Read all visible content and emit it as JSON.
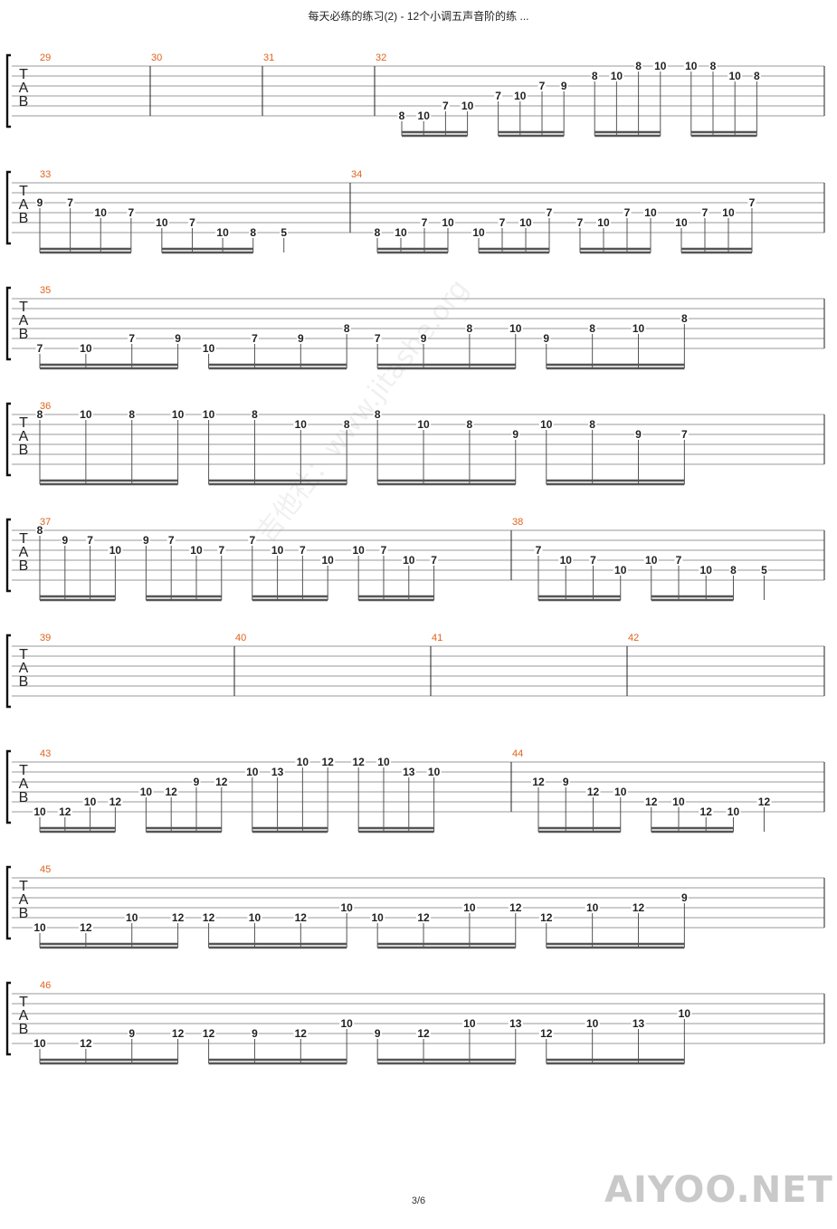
{
  "header": {
    "title": "每天必练的练习(2) - 12个小调五声音阶的练 ..."
  },
  "footer": {
    "page": "3/6",
    "logo": "AIYOO.NET"
  },
  "watermark": "吉他社：www.jitashe.org",
  "tab_label": [
    "T",
    "A",
    "B"
  ],
  "systems": [
    {
      "bars": [
        {
          "number": "29",
          "groups": []
        },
        {
          "number": "30",
          "groups": []
        },
        {
          "number": "31",
          "groups": []
        },
        {
          "number": "32",
          "groups": [
            [
              {
                "f": "8",
                "s": 6
              },
              {
                "f": "10",
                "s": 6
              },
              {
                "f": "7",
                "s": 5
              },
              {
                "f": "10",
                "s": 5
              }
            ],
            [
              {
                "f": "7",
                "s": 4
              },
              {
                "f": "10",
                "s": 4
              },
              {
                "f": "7",
                "s": 3
              },
              {
                "f": "9",
                "s": 3
              }
            ],
            [
              {
                "f": "8",
                "s": 2
              },
              {
                "f": "10",
                "s": 2
              },
              {
                "f": "8",
                "s": 1
              },
              {
                "f": "10",
                "s": 1
              }
            ],
            [
              {
                "f": "10",
                "s": 1
              },
              {
                "f": "8",
                "s": 1
              },
              {
                "f": "10",
                "s": 2
              },
              {
                "f": "8",
                "s": 2
              }
            ]
          ]
        }
      ]
    },
    {
      "bars": [
        {
          "number": "33",
          "groups": [
            [
              {
                "f": "9",
                "s": 3
              },
              {
                "f": "7",
                "s": 3
              },
              {
                "f": "10",
                "s": 4
              },
              {
                "f": "7",
                "s": 4
              }
            ],
            [
              {
                "f": "10",
                "s": 5
              },
              {
                "f": "7",
                "s": 5
              },
              {
                "f": "10",
                "s": 6
              },
              {
                "f": "8",
                "s": 6
              }
            ],
            [
              {
                "f": "5",
                "s": 6
              }
            ]
          ]
        },
        {
          "number": "34",
          "groups": [
            [
              {
                "f": "8",
                "s": 6
              },
              {
                "f": "10",
                "s": 6
              },
              {
                "f": "7",
                "s": 5
              },
              {
                "f": "10",
                "s": 5
              }
            ],
            [
              {
                "f": "10",
                "s": 6
              },
              {
                "f": "7",
                "s": 5
              },
              {
                "f": "10",
                "s": 5
              },
              {
                "f": "7",
                "s": 4
              }
            ],
            [
              {
                "f": "7",
                "s": 5
              },
              {
                "f": "10",
                "s": 5
              },
              {
                "f": "7",
                "s": 4
              },
              {
                "f": "10",
                "s": 4
              }
            ],
            [
              {
                "f": "10",
                "s": 5
              },
              {
                "f": "7",
                "s": 4
              },
              {
                "f": "10",
                "s": 4
              },
              {
                "f": "7",
                "s": 3
              }
            ]
          ]
        }
      ]
    },
    {
      "bars": [
        {
          "number": "35",
          "groups": [
            [
              {
                "f": "7",
                "s": 6
              },
              {
                "f": "10",
                "s": 6
              },
              {
                "f": "7",
                "s": 5
              },
              {
                "f": "9",
                "s": 5
              }
            ],
            [
              {
                "f": "10",
                "s": 6
              },
              {
                "f": "7",
                "s": 5
              },
              {
                "f": "9",
                "s": 5
              },
              {
                "f": "8",
                "s": 4
              }
            ],
            [
              {
                "f": "7",
                "s": 5
              },
              {
                "f": "9",
                "s": 5
              },
              {
                "f": "8",
                "s": 4
              },
              {
                "f": "10",
                "s": 4
              }
            ],
            [
              {
                "f": "9",
                "s": 5
              },
              {
                "f": "8",
                "s": 4
              },
              {
                "f": "10",
                "s": 4
              },
              {
                "f": "8",
                "s": 3
              }
            ]
          ]
        }
      ]
    },
    {
      "bars": [
        {
          "number": "36",
          "groups": [
            [
              {
                "f": "8",
                "s": 1
              },
              {
                "f": "10",
                "s": 1
              },
              {
                "f": "8",
                "s": 1
              },
              {
                "f": "10",
                "s": 1
              }
            ],
            [
              {
                "f": "10",
                "s": 1
              },
              {
                "f": "8",
                "s": 1
              },
              {
                "f": "10",
                "s": 2
              },
              {
                "f": "8",
                "s": 2
              }
            ],
            [
              {
                "f": "8",
                "s": 1
              },
              {
                "f": "10",
                "s": 2
              },
              {
                "f": "8",
                "s": 2
              },
              {
                "f": "9",
                "s": 3
              }
            ],
            [
              {
                "f": "10",
                "s": 2
              },
              {
                "f": "8",
                "s": 2
              },
              {
                "f": "9",
                "s": 3
              },
              {
                "f": "7",
                "s": 3
              }
            ]
          ]
        }
      ]
    },
    {
      "bars": [
        {
          "number": "37",
          "groups": [
            [
              {
                "f": "8",
                "s": 1
              },
              {
                "f": "9",
                "s": 2
              },
              {
                "f": "7",
                "s": 2
              },
              {
                "f": "10",
                "s": 3
              }
            ],
            [
              {
                "f": "9",
                "s": 2
              },
              {
                "f": "7",
                "s": 2
              },
              {
                "f": "10",
                "s": 3
              },
              {
                "f": "7",
                "s": 3
              }
            ],
            [
              {
                "f": "7",
                "s": 2
              },
              {
                "f": "10",
                "s": 3
              },
              {
                "f": "7",
                "s": 3
              },
              {
                "f": "10",
                "s": 4
              }
            ],
            [
              {
                "f": "10",
                "s": 3
              },
              {
                "f": "7",
                "s": 3
              },
              {
                "f": "10",
                "s": 4
              },
              {
                "f": "7",
                "s": 4
              }
            ]
          ]
        },
        {
          "number": "38",
          "groups": [
            [
              {
                "f": "7",
                "s": 3
              },
              {
                "f": "10",
                "s": 4
              },
              {
                "f": "7",
                "s": 4
              },
              {
                "f": "10",
                "s": 5
              }
            ],
            [
              {
                "f": "10",
                "s": 4
              },
              {
                "f": "7",
                "s": 4
              },
              {
                "f": "10",
                "s": 5
              },
              {
                "f": "8",
                "s": 5
              }
            ],
            [
              {
                "f": "5",
                "s": 5
              }
            ]
          ]
        }
      ]
    },
    {
      "bars": [
        {
          "number": "39",
          "groups": []
        },
        {
          "number": "40",
          "groups": []
        },
        {
          "number": "41",
          "groups": []
        },
        {
          "number": "42",
          "groups": []
        }
      ]
    },
    {
      "bars": [
        {
          "number": "43",
          "groups": [
            [
              {
                "f": "10",
                "s": 6
              },
              {
                "f": "12",
                "s": 6
              },
              {
                "f": "10",
                "s": 5
              },
              {
                "f": "12",
                "s": 5
              }
            ],
            [
              {
                "f": "10",
                "s": 4
              },
              {
                "f": "12",
                "s": 4
              },
              {
                "f": "9",
                "s": 3
              },
              {
                "f": "12",
                "s": 3
              }
            ],
            [
              {
                "f": "10",
                "s": 2
              },
              {
                "f": "13",
                "s": 2
              },
              {
                "f": "10",
                "s": 1
              },
              {
                "f": "12",
                "s": 1
              }
            ],
            [
              {
                "f": "12",
                "s": 1
              },
              {
                "f": "10",
                "s": 1
              },
              {
                "f": "13",
                "s": 2
              },
              {
                "f": "10",
                "s": 2
              }
            ]
          ]
        },
        {
          "number": "44",
          "groups": [
            [
              {
                "f": "12",
                "s": 3
              },
              {
                "f": "9",
                "s": 3
              },
              {
                "f": "12",
                "s": 4
              },
              {
                "f": "10",
                "s": 4
              }
            ],
            [
              {
                "f": "12",
                "s": 5
              },
              {
                "f": "10",
                "s": 5
              },
              {
                "f": "12",
                "s": 6
              },
              {
                "f": "10",
                "s": 6
              }
            ],
            [
              {
                "f": "12",
                "s": 5
              }
            ]
          ]
        }
      ]
    },
    {
      "bars": [
        {
          "number": "45",
          "groups": [
            [
              {
                "f": "10",
                "s": 6
              },
              {
                "f": "12",
                "s": 6
              },
              {
                "f": "10",
                "s": 5
              },
              {
                "f": "12",
                "s": 5
              }
            ],
            [
              {
                "f": "12",
                "s": 5
              },
              {
                "f": "10",
                "s": 5
              },
              {
                "f": "12",
                "s": 5
              },
              {
                "f": "10",
                "s": 4
              }
            ],
            [
              {
                "f": "10",
                "s": 5
              },
              {
                "f": "12",
                "s": 5
              },
              {
                "f": "10",
                "s": 4
              },
              {
                "f": "12",
                "s": 4
              }
            ],
            [
              {
                "f": "12",
                "s": 5
              },
              {
                "f": "10",
                "s": 4
              },
              {
                "f": "12",
                "s": 4
              },
              {
                "f": "9",
                "s": 3
              }
            ]
          ]
        }
      ]
    },
    {
      "bars": [
        {
          "number": "46",
          "groups": [
            [
              {
                "f": "10",
                "s": 6
              },
              {
                "f": "12",
                "s": 6
              },
              {
                "f": "9",
                "s": 5
              },
              {
                "f": "12",
                "s": 5
              }
            ],
            [
              {
                "f": "12",
                "s": 5
              },
              {
                "f": "9",
                "s": 5
              },
              {
                "f": "12",
                "s": 5
              },
              {
                "f": "10",
                "s": 4
              }
            ],
            [
              {
                "f": "9",
                "s": 5
              },
              {
                "f": "12",
                "s": 5
              },
              {
                "f": "10",
                "s": 4
              },
              {
                "f": "13",
                "s": 4
              }
            ],
            [
              {
                "f": "12",
                "s": 5
              },
              {
                "f": "10",
                "s": 4
              },
              {
                "f": "13",
                "s": 4
              },
              {
                "f": "10",
                "s": 3
              }
            ]
          ]
        }
      ]
    }
  ]
}
